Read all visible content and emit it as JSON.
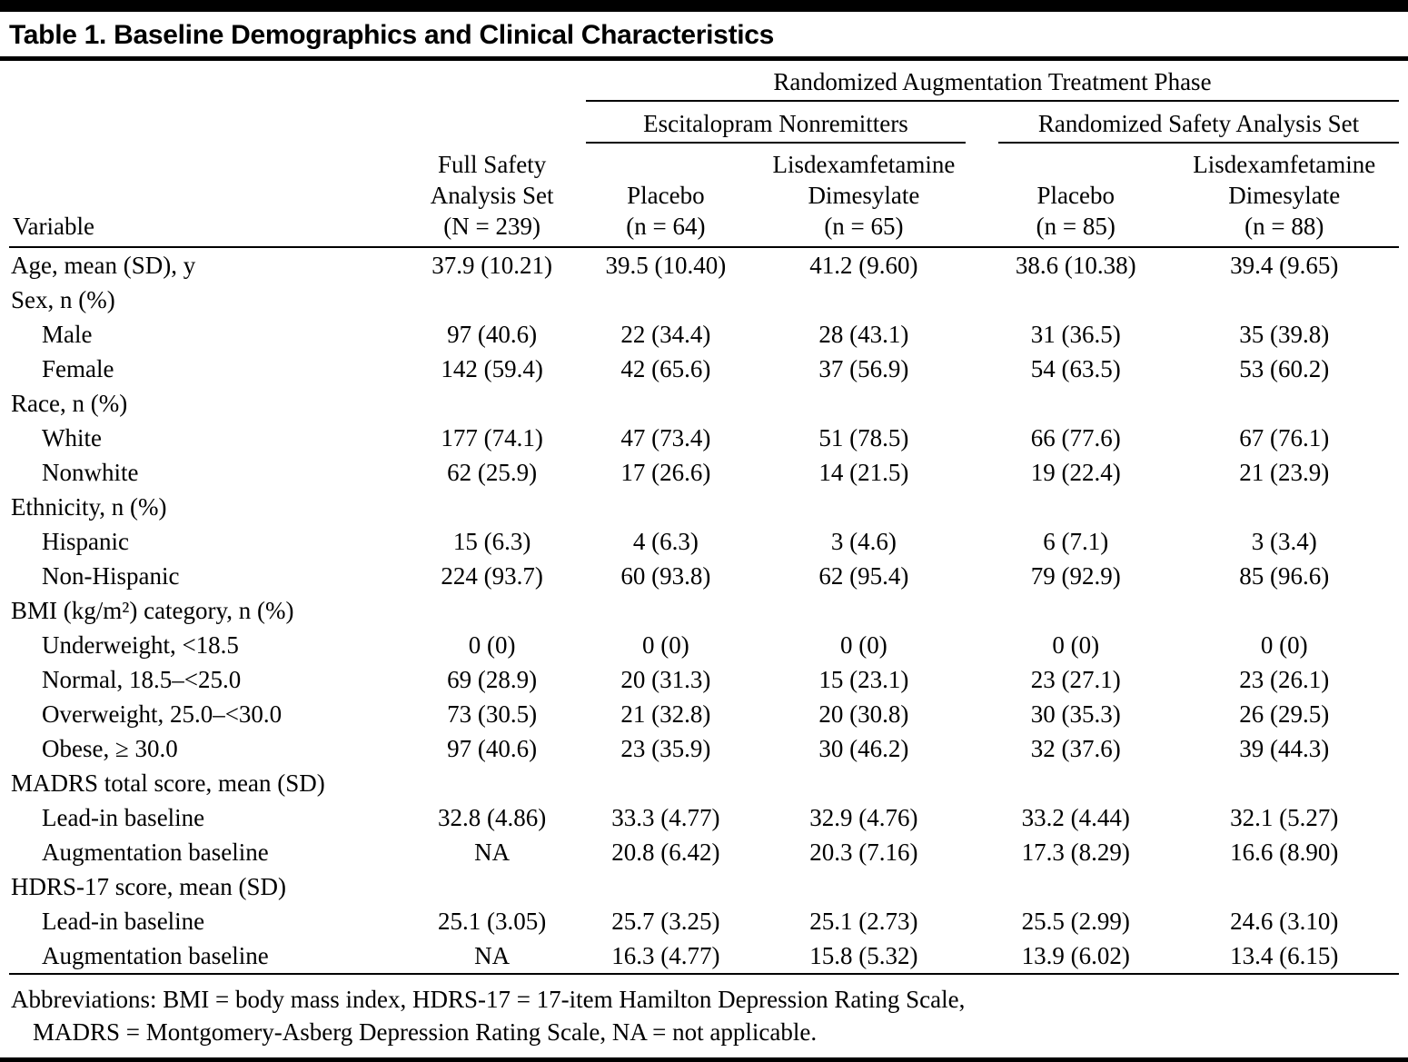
{
  "page": {
    "title": "Table 1. Baseline Demographics and Clinical Characteristics"
  },
  "table": {
    "header": {
      "phase_span": "Randomized Augmentation Treatment Phase",
      "group_left": "Escitalopram Nonremitters",
      "group_right": "Randomized Safety Analysis Set",
      "variable_label": "Variable",
      "columns": [
        "Full Safety\nAnalysis Set\n(N = 239)",
        "Placebo\n(n = 64)",
        "Lisdexamfetamine\nDimesylate\n(n = 65)",
        "Placebo\n(n = 85)",
        "Lisdexamfetamine\nDimesylate\n(n = 88)"
      ]
    },
    "rows": [
      {
        "label": "Age, mean (SD), y",
        "indent": false,
        "values": [
          "37.9 (10.21)",
          "39.5 (10.40)",
          "41.2 (9.60)",
          "38.6 (10.38)",
          "39.4 (9.65)"
        ]
      },
      {
        "label": "Sex, n (%)",
        "indent": false,
        "values": [
          "",
          "",
          "",
          "",
          ""
        ]
      },
      {
        "label": "Male",
        "indent": true,
        "values": [
          "97 (40.6)",
          "22 (34.4)",
          "28 (43.1)",
          "31 (36.5)",
          "35 (39.8)"
        ]
      },
      {
        "label": "Female",
        "indent": true,
        "values": [
          "142 (59.4)",
          "42 (65.6)",
          "37 (56.9)",
          "54 (63.5)",
          "53 (60.2)"
        ]
      },
      {
        "label": "Race, n (%)",
        "indent": false,
        "values": [
          "",
          "",
          "",
          "",
          ""
        ]
      },
      {
        "label": "White",
        "indent": true,
        "values": [
          "177 (74.1)",
          "47 (73.4)",
          "51 (78.5)",
          "66 (77.6)",
          "67 (76.1)"
        ]
      },
      {
        "label": "Nonwhite",
        "indent": true,
        "values": [
          "62 (25.9)",
          "17 (26.6)",
          "14 (21.5)",
          "19 (22.4)",
          "21 (23.9)"
        ]
      },
      {
        "label": "Ethnicity, n (%)",
        "indent": false,
        "values": [
          "",
          "",
          "",
          "",
          ""
        ]
      },
      {
        "label": "Hispanic",
        "indent": true,
        "values": [
          "15 (6.3)",
          "4 (6.3)",
          "3 (4.6)",
          "6 (7.1)",
          "3 (3.4)"
        ]
      },
      {
        "label": "Non-Hispanic",
        "indent": true,
        "values": [
          "224 (93.7)",
          "60 (93.8)",
          "62 (95.4)",
          "79 (92.9)",
          "85 (96.6)"
        ]
      },
      {
        "label": "BMI (kg/m²) category, n (%)",
        "indent": false,
        "values": [
          "",
          "",
          "",
          "",
          ""
        ]
      },
      {
        "label": "Underweight, <18.5",
        "indent": true,
        "values": [
          "0 (0)",
          "0 (0)",
          "0 (0)",
          "0 (0)",
          "0 (0)"
        ]
      },
      {
        "label": "Normal, 18.5–<25.0",
        "indent": true,
        "values": [
          "69 (28.9)",
          "20 (31.3)",
          "15 (23.1)",
          "23 (27.1)",
          "23 (26.1)"
        ]
      },
      {
        "label": "Overweight, 25.0–<30.0",
        "indent": true,
        "values": [
          "73 (30.5)",
          "21 (32.8)",
          "20 (30.8)",
          "30 (35.3)",
          "26 (29.5)"
        ]
      },
      {
        "label": "Obese, ≥ 30.0",
        "indent": true,
        "values": [
          "97 (40.6)",
          "23 (35.9)",
          "30 (46.2)",
          "32 (37.6)",
          "39 (44.3)"
        ]
      },
      {
        "label": "MADRS total score, mean (SD)",
        "indent": false,
        "values": [
          "",
          "",
          "",
          "",
          ""
        ]
      },
      {
        "label": "Lead-in baseline",
        "indent": true,
        "values": [
          "32.8 (4.86)",
          "33.3 (4.77)",
          "32.9 (4.76)",
          "33.2 (4.44)",
          "32.1 (5.27)"
        ]
      },
      {
        "label": "Augmentation baseline",
        "indent": true,
        "values": [
          "NA",
          "20.8 (6.42)",
          "20.3 (7.16)",
          "17.3 (8.29)",
          "16.6 (8.90)"
        ]
      },
      {
        "label": "HDRS-17 score, mean (SD)",
        "indent": false,
        "values": [
          "",
          "",
          "",
          "",
          ""
        ]
      },
      {
        "label": "Lead-in baseline",
        "indent": true,
        "values": [
          "25.1 (3.05)",
          "25.7 (3.25)",
          "25.1 (2.73)",
          "25.5 (2.99)",
          "24.6 (3.10)"
        ]
      },
      {
        "label": "Augmentation baseline",
        "indent": true,
        "values": [
          "NA",
          "16.3 (4.77)",
          "15.8 (5.32)",
          "13.9 (6.02)",
          "13.4 (6.15)"
        ]
      }
    ]
  },
  "footnote": {
    "lines": [
      "Abbreviations: BMI = body mass index, HDRS-17 = 17-item Hamilton Depression Rating Scale,",
      "MADRS = Montgomery-Asberg Depression Rating Scale, NA = not applicable."
    ]
  }
}
